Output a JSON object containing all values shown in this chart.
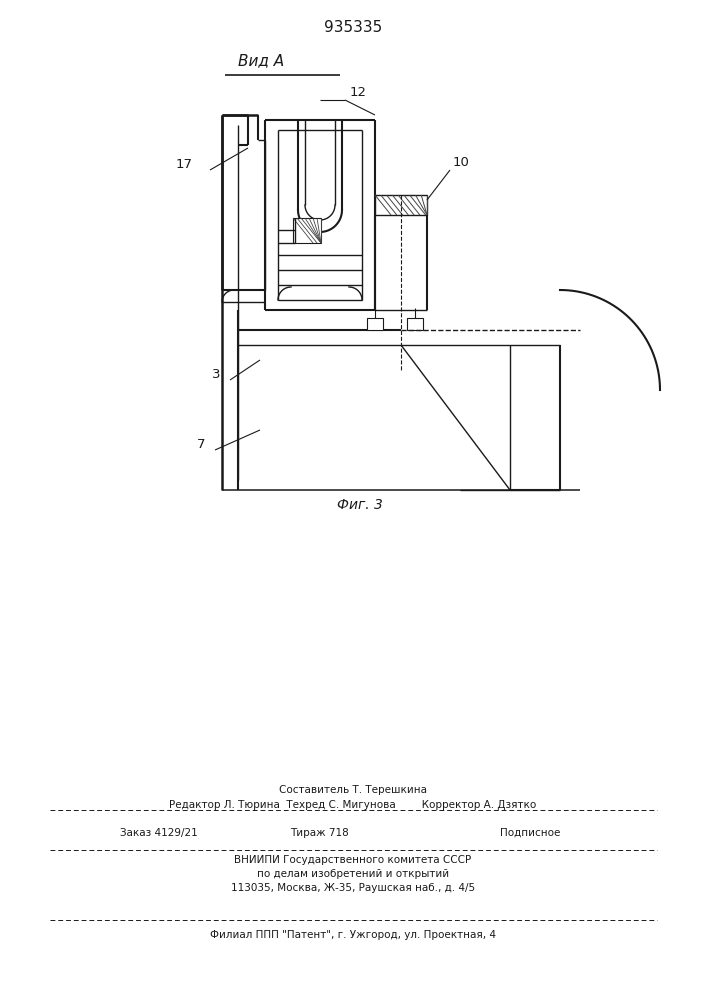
{
  "patent_number": "935335",
  "view_label": "Вид А",
  "fig_label": "Фиг. 3",
  "bg_color": "#ffffff",
  "line_color": "#1a1a1a",
  "line_width": 1.1,
  "footer": {
    "line1": "Составитель Т. Терешкина",
    "line2": "Редактор Л. Тюрина  Техред С. Мигунова        Корректор А. Дзятко",
    "line3a": "Заказ 4129/21",
    "line3b": "Тираж 718",
    "line3c": "Подписное",
    "line4": "ВНИИПИ Государственного комитета СССР",
    "line5": "по делам изобретений и открытий",
    "line6": "113035, Москва, Ж-35, Раушская наб., д. 4/5",
    "line7": "Филиал ППП \"Патент\", г. Ужгород, ул. Проектная, 4"
  }
}
